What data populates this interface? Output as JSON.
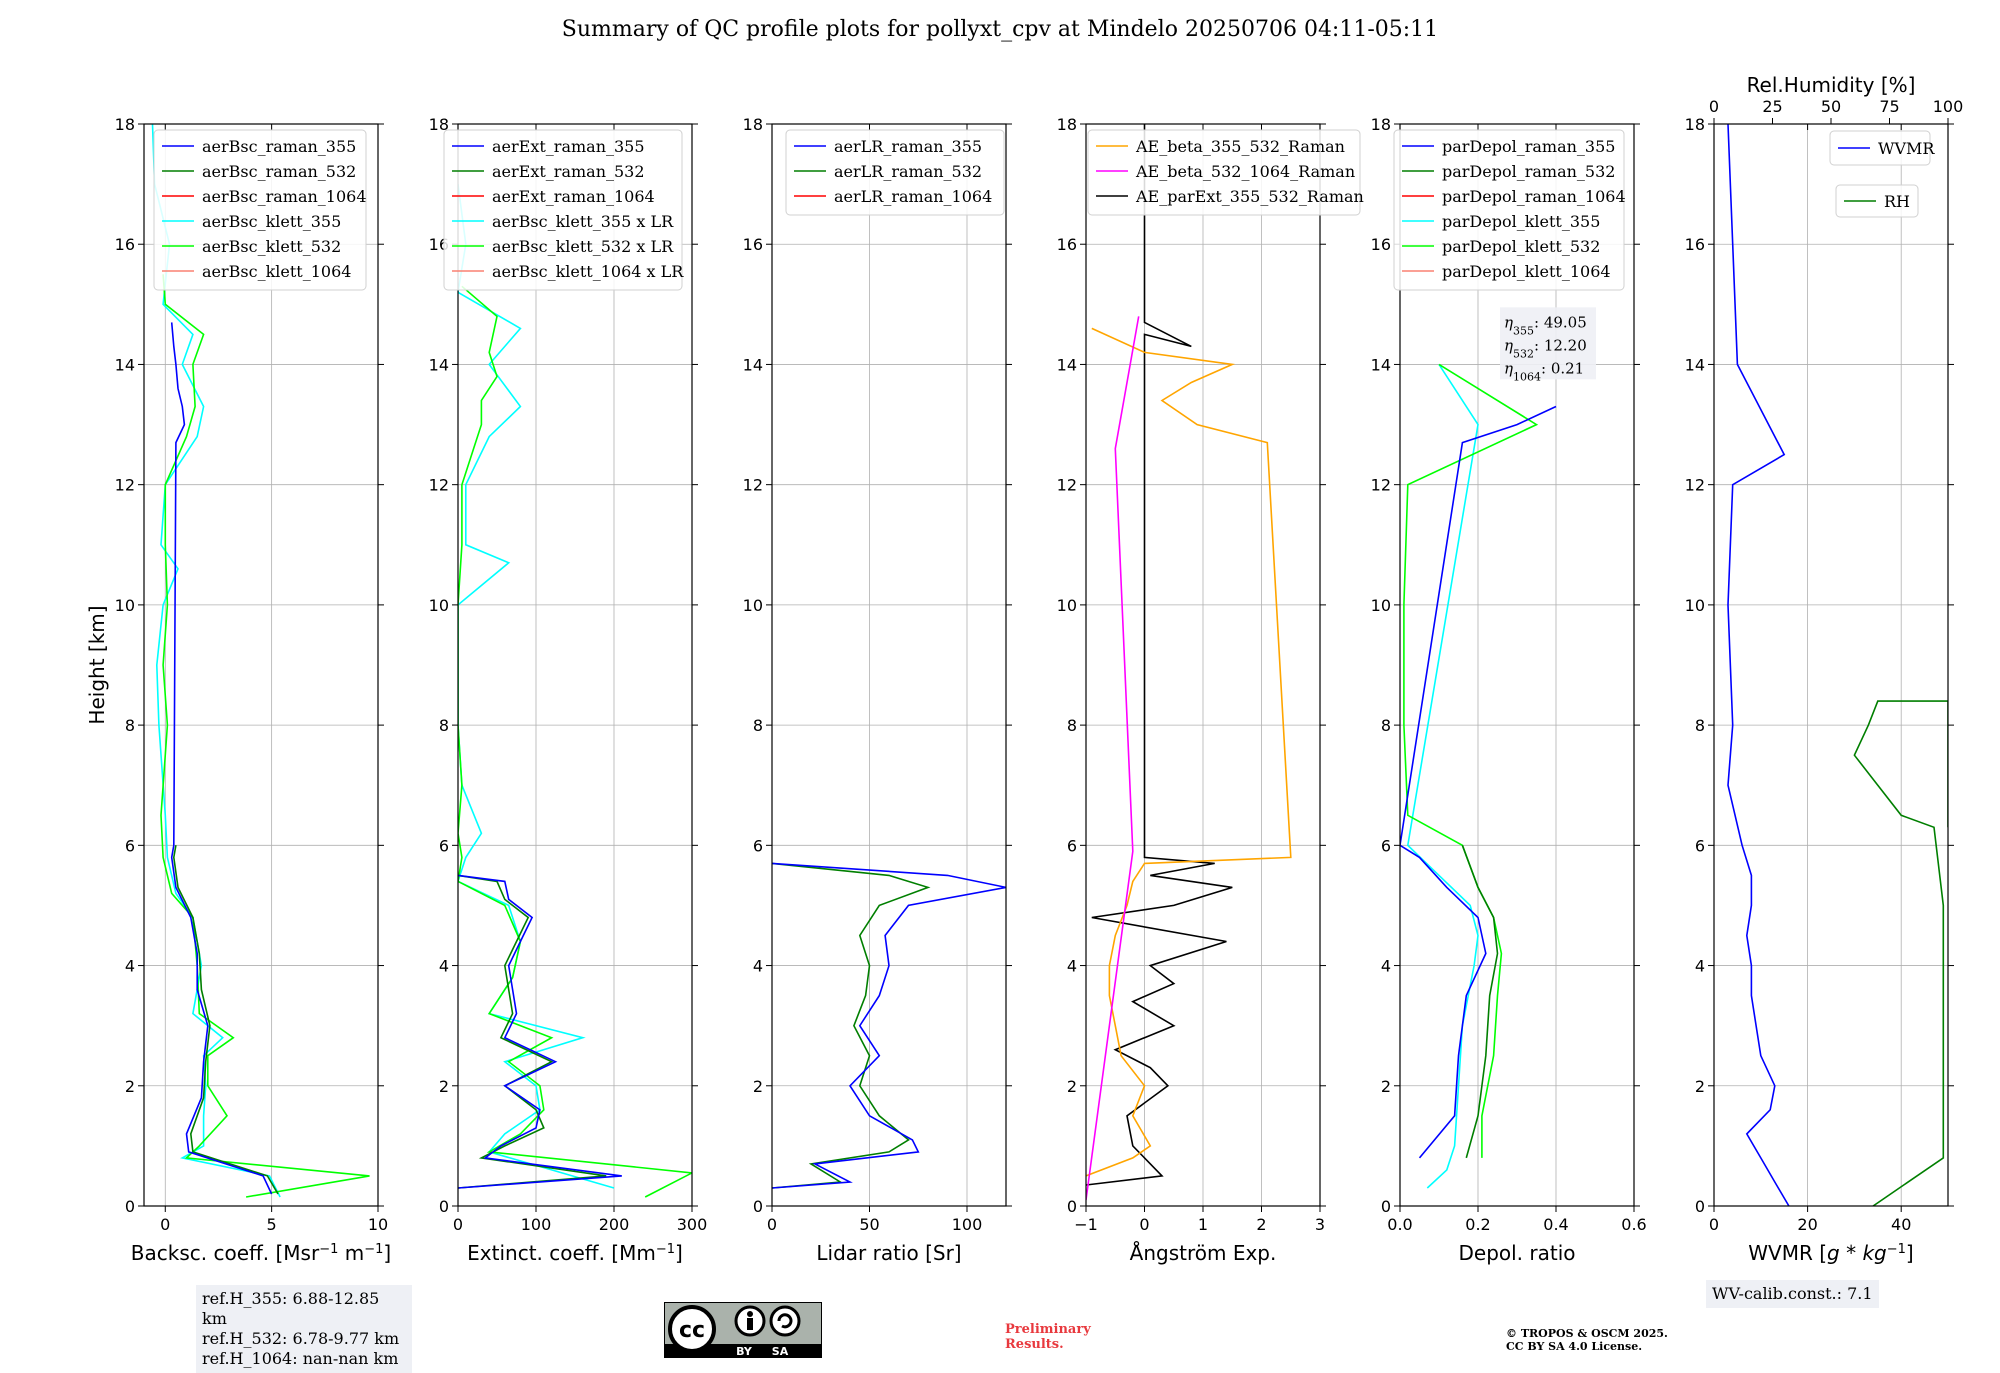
{
  "figure": {
    "title": "Summary of QC profile plots for pollyxt_cpv at Mindelo 20250706 04:11-05:11",
    "ref_heights": [
      "ref.H_355: 6.88-12.85 km",
      "ref.H_532: 6.78-9.77 km",
      "ref.H_1064: nan-nan km"
    ],
    "wv_calib": "WV-calib.const.: 7.1",
    "preliminary": [
      "Preliminary",
      "Results."
    ],
    "license": [
      "© TROPOS & OSCM 2025.",
      "CC BY SA 4.0 License."
    ],
    "cc_badge": {
      "by": "BY",
      "sa": "SA"
    },
    "colors": {
      "blue": "#0000ff",
      "green": "#007f00",
      "red": "#ff0000",
      "cyan": "#00ffff",
      "lime": "#00ff00",
      "salmon": "#fa8072",
      "orange": "#ffa500",
      "magenta": "#ff00ff",
      "black": "#000000"
    }
  },
  "chart_data": [
    {
      "type": "line",
      "name": "backscatter",
      "ylabel": "Height [km]",
      "xlabel": "Backsc. coeff. [Msr$^{-1}$ m$^{-1}$]",
      "xlabel_parts": [
        "Backsc. coeff. [Msr",
        "−1",
        " m",
        "−1",
        "]"
      ],
      "xlim": [
        -1,
        10
      ],
      "ylim": [
        0,
        18
      ],
      "xticks": [
        0,
        5,
        10
      ],
      "yticks": [
        0,
        2,
        4,
        6,
        8,
        10,
        12,
        14,
        16,
        18
      ],
      "legend": [
        "aerBsc_raman_355",
        "aerBsc_raman_532",
        "aerBsc_raman_1064",
        "aerBsc_klett_355",
        "aerBsc_klett_532",
        "aerBsc_klett_1064"
      ],
      "series": [
        {
          "name": "aerBsc_klett_355",
          "color": "cyan",
          "y": [
            0.15,
            0.5,
            0.8,
            1.0,
            1.5,
            2.0,
            2.5,
            2.8,
            3.2,
            4.0,
            4.8,
            5.2,
            5.8,
            6.5,
            8,
            9,
            10,
            10.6,
            11,
            12,
            12.8,
            13.3,
            14,
            14.5,
            15,
            16,
            17,
            18
          ],
          "x": [
            5.4,
            4.9,
            0.8,
            1.8,
            1.8,
            1.9,
            1.8,
            2.7,
            1.3,
            1.7,
            1.3,
            0.5,
            0.1,
            0.0,
            -0.3,
            -0.4,
            -0.1,
            0.6,
            -0.2,
            0.0,
            1.5,
            1.8,
            0.8,
            1.3,
            -0.1,
            0.2,
            -0.5,
            -0.6
          ]
        },
        {
          "name": "aerBsc_klett_532",
          "color": "lime",
          "y": [
            0.15,
            0.5,
            0.8,
            1.0,
            1.5,
            2.0,
            2.5,
            2.8,
            3.2,
            4.0,
            4.8,
            5.2,
            5.8,
            6.5,
            8,
            9,
            10,
            11,
            12,
            12.8,
            13.3,
            14,
            14.5,
            15,
            15.5
          ],
          "x": [
            3.8,
            9.6,
            1.0,
            1.6,
            2.9,
            2.0,
            2.0,
            3.2,
            1.6,
            1.5,
            1.3,
            0.3,
            -0.1,
            -0.2,
            0.1,
            -0.1,
            0.1,
            0.0,
            0.0,
            1.0,
            1.4,
            1.3,
            1.8,
            0.0,
            -0.1
          ]
        },
        {
          "name": "aerBsc_raman_532",
          "color": "green",
          "y": [
            0.2,
            0.5,
            0.9,
            1.2,
            1.8,
            2.4,
            3.0,
            3.6,
            4.2,
            4.8,
            5.3,
            5.8,
            6.0
          ],
          "x": [
            5.3,
            4.8,
            1.3,
            1.2,
            1.8,
            1.9,
            2.1,
            1.7,
            1.6,
            1.3,
            0.6,
            0.4,
            0.5
          ]
        },
        {
          "name": "aerBsc_raman_355",
          "color": "blue",
          "y": [
            0.2,
            0.5,
            0.9,
            1.2,
            1.8,
            2.4,
            3.0,
            3.6,
            4.2,
            4.8,
            5.3,
            5.8,
            6.0,
            12.7,
            13.0,
            13.3,
            13.6,
            14.0,
            14.3,
            14.7
          ],
          "x": [
            5.0,
            4.6,
            1.1,
            1.0,
            1.7,
            1.8,
            2.0,
            1.5,
            1.5,
            1.2,
            0.5,
            0.3,
            0.4,
            0.5,
            0.9,
            0.8,
            0.6,
            0.5,
            0.4,
            0.3
          ]
        }
      ]
    },
    {
      "type": "line",
      "name": "extinction",
      "xlabel": "Extinct. coeff. [Mm$^{-1}$]",
      "xlabel_parts": [
        "Extinct. coeff. [Mm",
        "−1",
        "]"
      ],
      "xlim": [
        0,
        300
      ],
      "ylim": [
        0,
        18
      ],
      "xticks": [
        0,
        100,
        200,
        300
      ],
      "yticks": [
        0,
        2,
        4,
        6,
        8,
        10,
        12,
        14,
        16,
        18
      ],
      "legend": [
        "aerExt_raman_355",
        "aerExt_raman_532",
        "aerExt_raman_1064",
        "aerBsc_klett_355 x LR",
        "aerBsc_klett_532 x LR",
        "aerBsc_klett_1064 x LR"
      ],
      "series": [
        {
          "name": "aerBsc_klett_355 x LR",
          "color": "cyan",
          "y": [
            0.3,
            0.6,
            0.9,
            1.2,
            1.6,
            2.0,
            2.4,
            2.8,
            3.2,
            3.8,
            4.4,
            5.0,
            5.4,
            5.8,
            6.2,
            7,
            8,
            9,
            10,
            10.7,
            11,
            12,
            12.8,
            13.3,
            14,
            14.6,
            15.2,
            16,
            17
          ],
          "x": [
            200,
            120,
            40,
            60,
            105,
            100,
            60,
            160,
            40,
            70,
            80,
            65,
            0,
            10,
            30,
            5,
            0,
            0,
            0,
            65,
            10,
            10,
            40,
            80,
            40,
            80,
            0,
            10,
            0
          ]
        },
        {
          "name": "aerBsc_klett_532 x LR",
          "color": "lime",
          "y": [
            0.15,
            0.55,
            0.9,
            1.2,
            1.6,
            2.0,
            2.4,
            2.8,
            3.2,
            3.8,
            4.4,
            5.0,
            5.4,
            5.8,
            6.2,
            7,
            8,
            9,
            10,
            11,
            12,
            12.6,
            13.0,
            13.4,
            13.8,
            14.2,
            14.8,
            15.3
          ],
          "x": [
            240,
            300,
            40,
            80,
            110,
            105,
            65,
            120,
            40,
            70,
            80,
            60,
            0,
            5,
            0,
            5,
            0,
            0,
            0,
            5,
            5,
            20,
            30,
            30,
            50,
            40,
            50,
            5
          ]
        },
        {
          "name": "aerExt_raman_532",
          "color": "green",
          "y": [
            0.3,
            0.5,
            0.8,
            1.0,
            1.3,
            1.6,
            2.0,
            2.4,
            2.8,
            3.2,
            3.6,
            4.0,
            4.4,
            4.8,
            5.1,
            5.4,
            5.5
          ],
          "x": [
            0,
            190,
            30,
            60,
            110,
            100,
            60,
            120,
            55,
            70,
            65,
            60,
            75,
            90,
            60,
            50,
            0
          ]
        },
        {
          "name": "aerExt_raman_355",
          "color": "blue",
          "y": [
            0.3,
            0.5,
            0.8,
            1.0,
            1.3,
            1.6,
            2.0,
            2.4,
            2.8,
            3.2,
            3.6,
            4.0,
            4.4,
            4.8,
            5.1,
            5.4,
            5.5
          ],
          "x": [
            0,
            210,
            35,
            55,
            100,
            105,
            60,
            125,
            60,
            75,
            70,
            65,
            80,
            95,
            65,
            60,
            0
          ]
        }
      ]
    },
    {
      "type": "line",
      "name": "lidar_ratio",
      "xlabel": "Lidar ratio [Sr]",
      "xlim": [
        0,
        120
      ],
      "ylim": [
        0,
        18
      ],
      "xticks": [
        0,
        50,
        100
      ],
      "yticks": [
        0,
        2,
        4,
        6,
        8,
        10,
        12,
        14,
        16,
        18
      ],
      "legend": [
        "aerLR_raman_355",
        "aerLR_raman_532",
        "aerLR_raman_1064"
      ],
      "series": [
        {
          "name": "aerLR_raman_532",
          "color": "green",
          "y": [
            0.3,
            0.4,
            0.7,
            0.9,
            1.1,
            1.5,
            2.0,
            2.5,
            3.0,
            3.5,
            4.0,
            4.5,
            5.0,
            5.3,
            5.5,
            5.7
          ],
          "x": [
            0,
            35,
            20,
            60,
            70,
            55,
            45,
            50,
            42,
            48,
            50,
            45,
            55,
            80,
            60,
            0
          ]
        },
        {
          "name": "aerLR_raman_355",
          "color": "blue",
          "y": [
            0.3,
            0.4,
            0.7,
            0.9,
            1.1,
            1.5,
            2.0,
            2.5,
            3.0,
            3.5,
            4.0,
            4.5,
            5.0,
            5.3,
            5.5,
            5.7
          ],
          "x": [
            0,
            40,
            22,
            75,
            72,
            50,
            40,
            55,
            45,
            55,
            60,
            58,
            70,
            120,
            90,
            0
          ]
        }
      ]
    },
    {
      "type": "line",
      "name": "angstrom",
      "xlabel": "Ångström Exp.",
      "xlim": [
        -1,
        3
      ],
      "ylim": [
        0,
        18
      ],
      "xticks": [
        -1,
        0,
        1,
        2,
        3
      ],
      "yticks": [
        0,
        2,
        4,
        6,
        8,
        10,
        12,
        14,
        16,
        18
      ],
      "legend": [
        "AE_beta_355_532_Raman",
        "AE_beta_532_1064_Raman",
        "AE_parExt_355_532_Raman"
      ],
      "series": [
        {
          "name": "AE_parExt_355_532_Raman",
          "color": "black",
          "y": [
            0.35,
            0.5,
            1.0,
            1.5,
            2.0,
            2.3,
            2.6,
            3.0,
            3.4,
            3.7,
            4.0,
            4.4,
            4.8,
            5.0,
            5.3,
            5.5,
            5.7,
            5.8,
            5.9,
            14.5,
            14.3,
            14.7,
            18
          ],
          "x": [
            -1,
            0.3,
            -0.2,
            -0.3,
            0.4,
            0.1,
            -0.5,
            0.5,
            -0.2,
            0.5,
            0.1,
            1.4,
            -0.9,
            0.5,
            1.5,
            0.1,
            1.2,
            0.0,
            0.0,
            0.0,
            0.8,
            0.0,
            0.0
          ]
        },
        {
          "name": "AE_beta_355_532_Raman",
          "color": "orange",
          "y": [
            0.5,
            0.8,
            1.0,
            1.5,
            2.0,
            2.5,
            3.0,
            3.5,
            4.0,
            4.5,
            5.0,
            5.4,
            5.7,
            5.8,
            12.7,
            13.0,
            13.4,
            13.7,
            14.0,
            14.2,
            14.6
          ],
          "x": [
            -1.0,
            -0.2,
            0.1,
            -0.2,
            0.0,
            -0.4,
            -0.5,
            -0.6,
            -0.6,
            -0.5,
            -0.3,
            -0.2,
            0.0,
            2.5,
            2.1,
            0.9,
            0.3,
            0.8,
            1.5,
            0.0,
            -0.9
          ]
        },
        {
          "name": "AE_beta_532_1064_Raman",
          "color": "magenta",
          "y": [
            0.1,
            5.9,
            12.6,
            14.8
          ],
          "x": [
            -1.0,
            -0.2,
            -0.5,
            -0.1
          ]
        }
      ]
    },
    {
      "type": "line",
      "name": "depolarization",
      "xlabel": "Depol. ratio",
      "xlim": [
        0,
        0.6
      ],
      "ylim": [
        0,
        18
      ],
      "xticks": [
        "0.0",
        "0.2",
        "0.4",
        "0.6"
      ],
      "yticks": [
        0,
        2,
        4,
        6,
        8,
        10,
        12,
        14,
        16,
        18
      ],
      "legend": [
        "parDepol_raman_355",
        "parDepol_raman_532",
        "parDepol_raman_1064",
        "parDepol_klett_355",
        "parDepol_klett_532",
        "parDepol_klett_1064"
      ],
      "eta_labels": [
        "49.05",
        "12.20",
        "0.21"
      ],
      "series": [
        {
          "name": "parDepol_klett_355",
          "color": "cyan",
          "y": [
            0.3,
            0.6,
            1.0,
            2.0,
            3.0,
            4.0,
            4.5,
            5.0,
            5.5,
            6.0,
            13.0,
            14.0
          ],
          "x": [
            0.07,
            0.12,
            0.14,
            0.15,
            0.16,
            0.19,
            0.2,
            0.18,
            0.1,
            0.02,
            0.2,
            0.1
          ]
        },
        {
          "name": "parDepol_klett_532",
          "color": "lime",
          "y": [
            0.8,
            1.5,
            2.5,
            3.5,
            4.2,
            4.8,
            5.3,
            6.0,
            6.5,
            8,
            10,
            12,
            13.0,
            14.0
          ],
          "x": [
            0.21,
            0.21,
            0.24,
            0.25,
            0.26,
            0.24,
            0.2,
            0.16,
            0.02,
            0.01,
            0.01,
            0.02,
            0.35,
            0.1
          ]
        },
        {
          "name": "parDepol_raman_532",
          "color": "green",
          "y": [
            0.8,
            1.5,
            2.5,
            3.5,
            4.2,
            4.8,
            5.3,
            6.0
          ],
          "x": [
            0.17,
            0.2,
            0.22,
            0.23,
            0.25,
            0.24,
            0.2,
            0.16
          ]
        },
        {
          "name": "parDepol_raman_355",
          "color": "blue",
          "y": [
            0.8,
            1.5,
            2.5,
            3.5,
            4.2,
            4.8,
            5.3,
            5.8,
            6.0,
            12.7,
            13.0,
            13.3
          ],
          "x": [
            0.05,
            0.14,
            0.15,
            0.17,
            0.22,
            0.2,
            0.12,
            0.05,
            0.0,
            0.16,
            0.3,
            0.4
          ]
        }
      ]
    },
    {
      "type": "line",
      "name": "water_vapor",
      "xlabel": "WVMR [$g*kg^{-1}$]",
      "xlabel_parts": [
        "WVMR [",
        "g",
        " * ",
        "kg",
        "−1",
        "]"
      ],
      "top_label": "Rel.Humidity [%]",
      "xlim": [
        0,
        50
      ],
      "ylim": [
        0,
        18
      ],
      "xticks": [
        0,
        20,
        40
      ],
      "top_xlim": [
        0,
        100
      ],
      "top_xticks": [
        0,
        25,
        50,
        75,
        100
      ],
      "yticks": [
        0,
        2,
        4,
        6,
        8,
        10,
        12,
        14,
        16,
        18
      ],
      "legend": [
        "WVMR",
        "RH"
      ],
      "series": [
        {
          "name": "WVMR",
          "color": "blue",
          "y": [
            0,
            0.4,
            0.8,
            1.2,
            1.6,
            2.0,
            2.5,
            3.0,
            3.5,
            4.0,
            4.5,
            5.0,
            5.5,
            6.0,
            7.0,
            8.0,
            10,
            12,
            12.5,
            14,
            16,
            18
          ],
          "x": [
            16,
            13,
            10,
            7,
            12,
            13,
            10,
            9,
            8,
            8,
            7,
            8,
            8,
            6,
            3,
            4,
            3,
            4,
            15,
            5,
            4,
            3
          ]
        },
        {
          "name": "RH",
          "color": "green",
          "y": [
            0,
            0.8,
            5.0,
            6.3,
            6.5,
            7.0,
            7.5,
            8.0,
            8.4,
            8.4,
            8.0,
            7.5,
            7.0,
            6.5,
            6.3
          ],
          "x": [
            34,
            49,
            49,
            47,
            40,
            35,
            30,
            33,
            35,
            50,
            50,
            50,
            50,
            50,
            50
          ]
        }
      ]
    }
  ]
}
